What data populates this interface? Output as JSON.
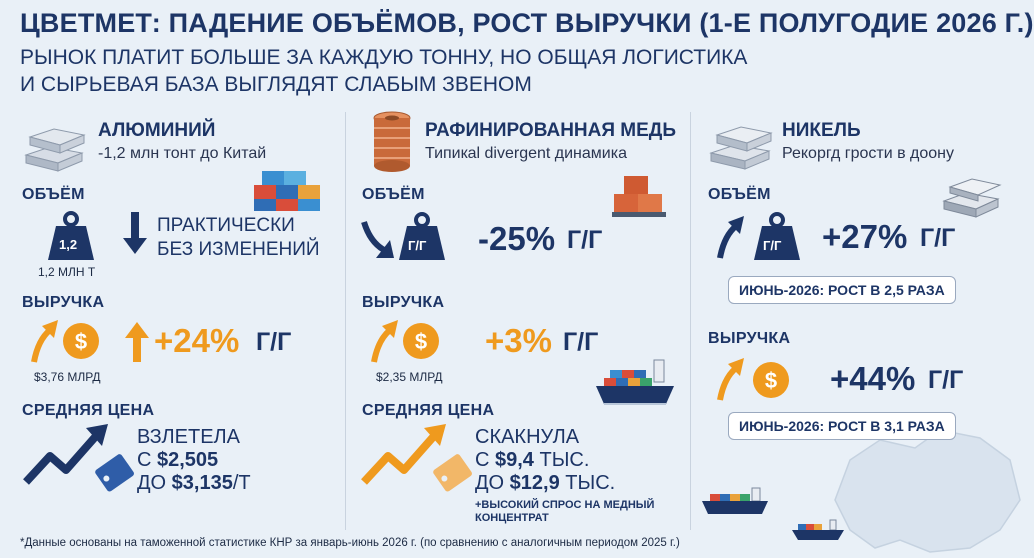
{
  "header": {
    "title": "ЦВЕТМЕТ: ПАДЕНИЕ ОБЪЁМОВ, РОСТ ВЫРУЧКИ (1-Е ПОЛУГОДИЕ 2026 Г.)",
    "subtitle_line1": "РЫНОК ПЛАТИТ БОЛЬШЕ ЗА КАЖДУЮ ТОННУ, НО ОБЩАЯ ЛОГИСТИКА",
    "subtitle_line2": "И СЫРЬЕВАЯ БАЗА ВЫГЛЯДЯТ СЛАБЫМ ЗВЕНОМ"
  },
  "aluminum": {
    "title": "АЛЮМИНИЙ",
    "subtitle": "-1,2 млн тонт до Китай",
    "volume_label": "ОБЪЁМ",
    "weight_value": "1,2",
    "weight_caption": "1,2 МЛН Т",
    "volume_line1": "ПРАКТИЧЕСКИ",
    "volume_line2": "БЕЗ ИЗМЕНЕНИЙ",
    "revenue_label": "ВЫРУЧКА",
    "revenue_caption": "$3,76 МЛРД",
    "revenue_change": "+24%",
    "revenue_unit": "Г/Г",
    "price_label": "СРЕДНЯЯ ЦЕНА",
    "price_line1": "ВЗЛЕТЕЛА",
    "price_from_prefix": "С ",
    "price_from": "$2,505",
    "price_to_prefix": "ДО ",
    "price_to": "$3,135",
    "price_to_suffix": "/Т"
  },
  "copper": {
    "title": "РАФИНИРОВАННАЯ МЕДЬ",
    "subtitle": "Типикal divergent динамика",
    "volume_label": "ОБЪЁМ",
    "weight_label": "Г/Г",
    "volume_change": "-25%",
    "volume_unit": "Г/Г",
    "revenue_label": "ВЫРУЧКА",
    "revenue_caption": "$2,35 МЛРД",
    "revenue_change": "+3%",
    "revenue_unit": "Г/Г",
    "price_label": "СРЕДНЯЯ ЦЕНА",
    "price_line1": "СКАКНУЛА",
    "price_from_prefix": "С ",
    "price_from": "$9,4",
    "price_from_suffix": " ТЫС.",
    "price_to_prefix": "ДО ",
    "price_to": "$12,9",
    "price_to_suffix": " ТЫС.",
    "note_line1": "+ВЫСОКИЙ СПРОС НА МЕДНЫЙ",
    "note_line2": "КОНЦЕНТРАТ"
  },
  "nickel": {
    "title": "НИКЕЛЬ",
    "subtitle": "Рекоргд грости в доону",
    "volume_label": "ОБЪЁМ",
    "weight_label": "Г/Г",
    "volume_change": "+27%",
    "volume_unit": "Г/Г",
    "volume_pill": "ИЮНЬ-2026: РОСТ В 2,5 РАЗА",
    "revenue_label": "ВЫРУЧКА",
    "revenue_change": "+44%",
    "revenue_unit": "Г/Г",
    "revenue_pill": "ИЮНЬ-2026: РОСТ В 3,1 РАЗА"
  },
  "footnote": "*Данные основаны на таможенной статистике КНР за январь-июнь 2026 г. (по сравнению с аналогичным периодом 2025 г.)",
  "colors": {
    "navy": "#1d3566",
    "orange": "#ef9a1e",
    "background": "#e9f0f7"
  },
  "icons": [
    "ingot-stack-icon",
    "copper-coil-icon",
    "nickel-ingot-icon",
    "weight-icon",
    "dollar-coin-icon",
    "arrow-up-icon",
    "arrow-down-icon",
    "trend-chart-icon",
    "price-tag-icon",
    "container-ship-icon",
    "containers-icon",
    "china-map-icon"
  ]
}
